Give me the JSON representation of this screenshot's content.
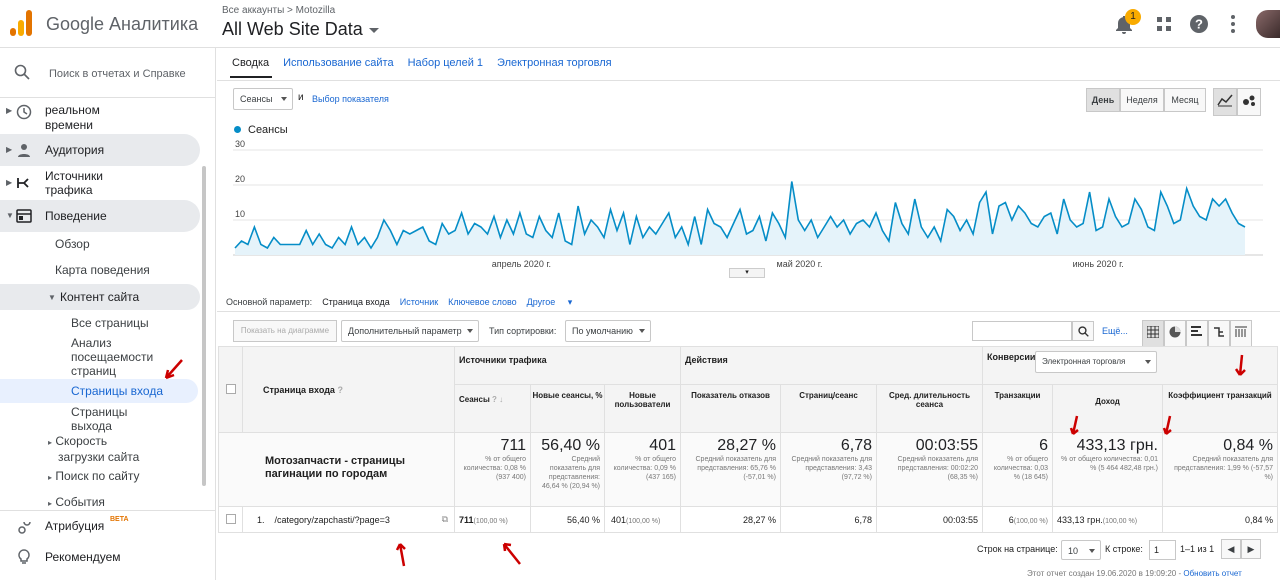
{
  "header": {
    "brand": "Google Аналитика",
    "breadcrumb": "Все аккаунты > Motozilla",
    "account": "All Web Site Data",
    "notif_count": "1"
  },
  "sidebar": {
    "search_placeholder": "Поиск в отчетах и Справке",
    "realtime": "Отчеты в реальном времени",
    "realtime_a": "реальном",
    "realtime_b": "времени",
    "audience": "Аудитория",
    "sources_a": "Источники",
    "sources_b": "трафика",
    "behavior": "Поведение",
    "overview": "Обзор",
    "behavior_map": "Карта поведения",
    "site_content": "Контент сайта",
    "all_pages": "Все страницы",
    "analysis_a": "Анализ",
    "analysis_b": "посещаемости",
    "analysis_c": "страниц",
    "landing_pages": "Страницы входа",
    "exit_a": "Страницы",
    "exit_b": "выхода",
    "speed_a": "Скорость",
    "speed_b": "загрузки сайта",
    "site_search": "Поиск по сайту",
    "events": "События",
    "attribution": "Атрибуция",
    "beta": "BETA",
    "recommend": "Рекомендуем"
  },
  "tabs": [
    "Сводка",
    "Использование сайта",
    "Набор целей 1",
    "Электронная торговля"
  ],
  "controls": {
    "metric": "Сеансы",
    "and": "и",
    "choose_metric": "Выбор показателя",
    "day": "День",
    "week": "Неделя",
    "month": "Месяц",
    "legend": "Сеансы"
  },
  "chart_data": {
    "type": "area",
    "series": [
      {
        "name": "Сеансы",
        "values": [
          2,
          4,
          3,
          8,
          3,
          2,
          5,
          3,
          3,
          3,
          3,
          7,
          3,
          6,
          3,
          2,
          5,
          3,
          8,
          3,
          5,
          2,
          5,
          10,
          7,
          3,
          7,
          6,
          7,
          8,
          4,
          3,
          9,
          6,
          7,
          12,
          6,
          9,
          8,
          6,
          11,
          5,
          10,
          6,
          12,
          6,
          5,
          11,
          7,
          5,
          12,
          4,
          3,
          14,
          6,
          10,
          8,
          5,
          13,
          7,
          12,
          3,
          11,
          5,
          8,
          6,
          9,
          12,
          5,
          8,
          3,
          11,
          3,
          13,
          9,
          8,
          5,
          9,
          13,
          6,
          7,
          11,
          4,
          12,
          9,
          5,
          21,
          10,
          7,
          10,
          5,
          8,
          11,
          8,
          10,
          6,
          9,
          10,
          8,
          12,
          7,
          4,
          15,
          9,
          6,
          16,
          8,
          5,
          8,
          4,
          13,
          11,
          7,
          10,
          6,
          15,
          18,
          6,
          14,
          15,
          10,
          14,
          12,
          9,
          8,
          11,
          12,
          6,
          16,
          10,
          8,
          9,
          18,
          7,
          8,
          16,
          11,
          8,
          9,
          16,
          13,
          8,
          7,
          18,
          14,
          9,
          10,
          19,
          14,
          11,
          10,
          16,
          14,
          16,
          12,
          9,
          8
        ]
      }
    ],
    "x_labels": [
      "апрель 2020 г.",
      "май 2020 г.",
      "июнь 2020 г."
    ],
    "y_ticks": [
      10,
      20,
      30
    ],
    "ylim": [
      0,
      30
    ]
  },
  "dims": {
    "label": "Основной параметр:",
    "landing": "Страница входа",
    "source": "Источник",
    "keyword": "Ключевое слово",
    "other": "Другое"
  },
  "toolbar": {
    "plot": "Показать на диаграмме",
    "secondary": "Дополнительный параметр",
    "sort_label": "Тип сортировки:",
    "sort_value": "По умолчанию",
    "more": "Ещё..."
  },
  "table": {
    "col_page": "Страница входа",
    "grp_traffic": "Источники трафика",
    "grp_actions": "Действия",
    "grp_conv": "Конверсии",
    "conv_select": "Электронная торговля",
    "h_sessions": "Сеансы",
    "h_new_pct": "Новые сеансы, %",
    "h_new_users": "Новые пользователи",
    "h_bounce": "Показатель отказов",
    "h_pages": "Страниц/сеанс",
    "h_duration": "Сред. длительность сеанса",
    "h_trans": "Транзакции",
    "h_revenue": "Доход",
    "h_conv": "Коэффициент транзакций",
    "total_label": "Мотозапчасти - страницы пагинации по городам",
    "t_sessions": "711",
    "t_sessions_s": "% от общего количества: 0,08 % (937 400)",
    "t_new_pct": "56,40 %",
    "t_new_pct_s": "Средний показатель для представления: 46,64 % (20,94 %)",
    "t_new_users": "401",
    "t_new_users_s": "% от общего количества: 0,09 % (437 165)",
    "t_bounce": "28,27 %",
    "t_bounce_s": "Средний показатель для представления: 65,76 % (-57,01 %)",
    "t_pages": "6,78",
    "t_pages_s": "Средний показатель для представления: 3,43 (97,72 %)",
    "t_duration": "00:03:55",
    "t_duration_s": "Средний показатель для представления: 00:02:20 (68,35 %)",
    "t_trans": "6",
    "t_trans_s": "% от общего количества: 0,03 % (18 645)",
    "t_revenue": "433,13 грн.",
    "t_revenue_s": "% от общего количества: 0,01 % (5 464 482,48 грн.)",
    "t_conv": "0,84 %",
    "t_conv_s": "Средний показатель для представления: 1,99 % (-57,57 %)",
    "r_num": "1.",
    "r_page": "/category/zapchasti/?page=3",
    "r_sessions": "711",
    "r_sessions_p": "(100,00 %)",
    "r_new_pct": "56,40 %",
    "r_new_users": "401",
    "r_new_users_p": "(100,00 %)",
    "r_bounce": "28,27 %",
    "r_pages": "6,78",
    "r_duration": "00:03:55",
    "r_trans": "6",
    "r_trans_p": "(100,00 %)",
    "r_revenue": "433,13 грн.",
    "r_revenue_p": "(100,00 %)",
    "r_conv": "0,84 %"
  },
  "footer": {
    "rows_label": "Строк на странице:",
    "rows_value": "10",
    "goto_label": "К строке:",
    "goto_value": "1",
    "range": "1–1 из 1",
    "created": "Этот отчет создан 19.06.2020 в 19:09:20 -",
    "refresh": "Обновить отчет"
  }
}
